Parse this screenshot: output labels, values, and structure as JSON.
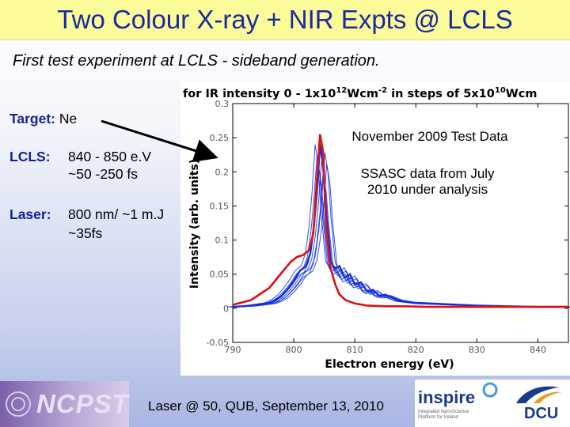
{
  "slide": {
    "title": "Two Colour X-ray + NIR Expts @ LCLS",
    "subtitle": "First test experiment at LCLS - sideband generation.",
    "target_label": "Target:",
    "target_value": "Ne",
    "lcls_label": "LCLS:",
    "lcls_line1": "840 - 850 e.V",
    "lcls_line2": "~50 -250 fs",
    "laser_label": "Laser:",
    "laser_line1": "800 nm/ ~1 m.J",
    "laser_line2": "~35fs",
    "note1": "November 2009 Test Data",
    "note2_line1": "SSASC data from July",
    "note2_line2": "2010 under analysis",
    "footer": "Laser @ 50, QUB, September 13, 2010",
    "logo_left": "NCPST",
    "logo_mid": "inspire",
    "logo_mid_tagline1": "Integrated NanoScience",
    "logo_mid_tagline2": "Platform for Ireland",
    "logo_right": "DCU"
  },
  "chart_data": {
    "type": "line",
    "title": "for IR intensity 0 - 1x10^12 Wcm^-2 in steps of 5x10^10 Wcm^-2",
    "title_prefix": "for IR intensity 0 - 1x10",
    "title_exp1": "12",
    "title_mid": "Wcm",
    "title_exp2": "-2",
    "title_mid2": " in steps of 5x10",
    "title_exp3": "10",
    "title_end": "Wcm",
    "xlabel": "Electron energy (eV)",
    "ylabel": "Intensity (arb. units)",
    "xlim": [
      790,
      845
    ],
    "ylim": [
      -0.05,
      0.3
    ],
    "xticks": [
      790,
      800,
      810,
      820,
      830,
      840
    ],
    "yticks": [
      -0.05,
      0,
      0.05,
      0.1,
      0.15,
      0.2,
      0.25,
      0.3
    ],
    "ytick_labels": [
      "-0.05",
      "0",
      "0.05",
      "0.1",
      "0.15",
      "0.2",
      "0.25",
      "0.3"
    ],
    "grid": false,
    "colors": {
      "field_free": "#e01010",
      "ir_dressed": "#1030e0"
    },
    "series": [
      {
        "x": [
          790,
          793,
          796,
          798,
          799.5,
          800.5,
          801.5,
          802.5,
          803.2,
          803.8,
          804.3,
          804.8,
          805.3,
          806,
          806.8,
          807.5,
          808.5,
          810,
          812,
          815,
          818,
          822,
          826,
          830,
          835,
          840,
          845
        ],
        "values": [
          0.005,
          0.012,
          0.03,
          0.052,
          0.068,
          0.075,
          0.078,
          0.085,
          0.11,
          0.19,
          0.255,
          0.23,
          0.12,
          0.06,
          0.035,
          0.02,
          0.012,
          0.007,
          0.004,
          0.003,
          0.003,
          0.002,
          0.002,
          0.002,
          0.002,
          0.002,
          0.002
        ]
      },
      {
        "x": [
          790,
          793,
          796,
          797,
          798,
          799,
          800,
          801,
          802,
          802.7,
          803.3,
          803.8,
          804.3,
          804.8,
          805.3,
          806,
          806.7,
          807.5,
          808.3,
          809.2,
          810,
          811,
          812,
          813,
          814,
          815,
          817,
          820,
          825,
          830,
          835,
          840,
          845
        ],
        "values": [
          0.002,
          0.004,
          0.008,
          0.012,
          0.018,
          0.028,
          0.04,
          0.055,
          0.062,
          0.08,
          0.12,
          0.17,
          0.24,
          0.21,
          0.14,
          0.07,
          0.058,
          0.062,
          0.045,
          0.05,
          0.035,
          0.038,
          0.025,
          0.027,
          0.018,
          0.02,
          0.012,
          0.008,
          0.006,
          0.004,
          0.003,
          0.002,
          0.002
        ]
      }
    ]
  }
}
